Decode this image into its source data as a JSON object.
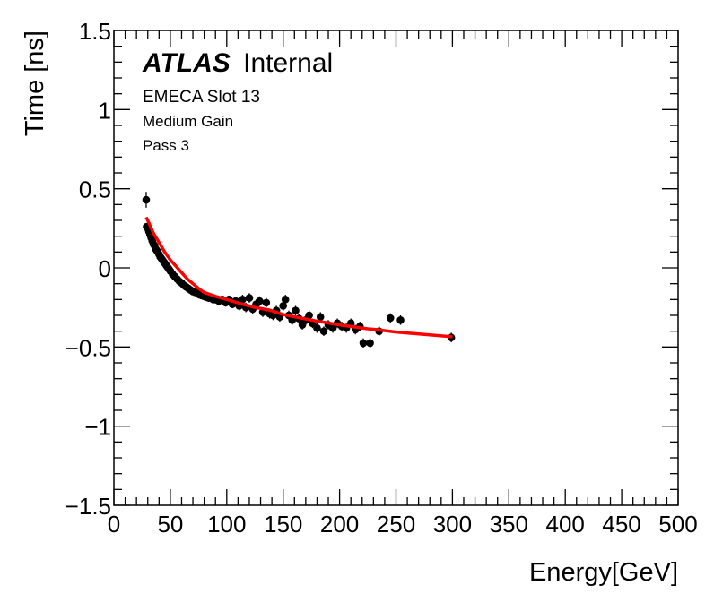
{
  "chart_data": {
    "type": "scatter",
    "title": "",
    "xlabel": "Energy[GeV]",
    "ylabel": "Time [ns]",
    "xlim": [
      0,
      500
    ],
    "ylim": [
      -1.5,
      1.5
    ],
    "x_major_ticks": [
      0,
      50,
      100,
      150,
      200,
      250,
      300,
      350,
      400,
      450,
      500
    ],
    "x_tick_labels": [
      "0",
      "50",
      "100",
      "150",
      "200",
      "250",
      "300",
      "350",
      "400",
      "450",
      "500"
    ],
    "x_minor_step": 10,
    "y_major_ticks": [
      -1.5,
      -1,
      -0.5,
      0,
      0.5,
      1,
      1.5
    ],
    "y_tick_labels": [
      "−1.5",
      "−1",
      "−0.5",
      "0",
      "0.5",
      "1",
      "1.5"
    ],
    "y_minor_step": 0.1,
    "grid": false,
    "annotations": {
      "experiment": "ATLAS",
      "status": "Internal",
      "lines": [
        "EMECA Slot 13",
        "Medium Gain",
        "Pass 3"
      ]
    },
    "colors": {
      "data": "#000000",
      "fit": "#ff0000",
      "axis": "#000000"
    },
    "fit_curve": {
      "name": "fit",
      "x": [
        28.6,
        30,
        35,
        40,
        45,
        50,
        55,
        60,
        65,
        70,
        75,
        80,
        90,
        100,
        112,
        125,
        137.5,
        150,
        175,
        200,
        225,
        233,
        250,
        275,
        300
      ],
      "y": [
        0.32,
        0.3,
        0.22,
        0.16,
        0.1,
        0.05,
        0.01,
        -0.03,
        -0.07,
        -0.1,
        -0.13,
        -0.155,
        -0.18,
        -0.2,
        -0.225,
        -0.25,
        -0.266,
        -0.295,
        -0.33,
        -0.36,
        -0.385,
        -0.39,
        -0.405,
        -0.42,
        -0.435
      ]
    },
    "series": [
      {
        "name": "data",
        "x": [
          28.6,
          29,
          30,
          31,
          32,
          33,
          34,
          35,
          36,
          37,
          38,
          39,
          40,
          41,
          42,
          43,
          44,
          45,
          46,
          47,
          48,
          49,
          50,
          52,
          54,
          56,
          58,
          60,
          62,
          64,
          66,
          68,
          70,
          72,
          74,
          76,
          78,
          80,
          82,
          84,
          86,
          88,
          90,
          93,
          96,
          99,
          102,
          105,
          108,
          111,
          114,
          117,
          120,
          123,
          126,
          129,
          132,
          135,
          138,
          141,
          144,
          147,
          150,
          152,
          155,
          158,
          161,
          164,
          167,
          170,
          173,
          176,
          180,
          183,
          186,
          190,
          194,
          198,
          202,
          206,
          210,
          214,
          218,
          221,
          227,
          235,
          245,
          254,
          299
        ],
        "y": [
          0.43,
          0.26,
          0.25,
          0.23,
          0.21,
          0.19,
          0.17,
          0.15,
          0.14,
          0.12,
          0.11,
          0.1,
          0.085,
          0.07,
          0.06,
          0.05,
          0.04,
          0.03,
          0.02,
          0.01,
          0.0,
          -0.01,
          -0.02,
          -0.04,
          -0.055,
          -0.07,
          -0.085,
          -0.095,
          -0.11,
          -0.12,
          -0.13,
          -0.14,
          -0.15,
          -0.155,
          -0.16,
          -0.17,
          -0.175,
          -0.18,
          -0.185,
          -0.19,
          -0.19,
          -0.2,
          -0.2,
          -0.21,
          -0.2,
          -0.22,
          -0.2,
          -0.23,
          -0.21,
          -0.24,
          -0.2,
          -0.25,
          -0.19,
          -0.26,
          -0.23,
          -0.21,
          -0.28,
          -0.22,
          -0.29,
          -0.3,
          -0.27,
          -0.31,
          -0.24,
          -0.2,
          -0.3,
          -0.33,
          -0.27,
          -0.32,
          -0.36,
          -0.33,
          -0.3,
          -0.35,
          -0.38,
          -0.31,
          -0.4,
          -0.36,
          -0.38,
          -0.35,
          -0.37,
          -0.38,
          -0.35,
          -0.39,
          -0.37,
          -0.475,
          -0.475,
          -0.4,
          -0.317,
          -0.33,
          -0.44
        ],
        "yerr": [
          0.05,
          0.02,
          0.02,
          0.02,
          0.02,
          0.02,
          0.02,
          0.02,
          0.02,
          0.02,
          0.02,
          0.02,
          0.02,
          0.02,
          0.02,
          0.02,
          0.02,
          0.02,
          0.02,
          0.02,
          0.02,
          0.02,
          0.02,
          0.02,
          0.02,
          0.02,
          0.02,
          0.02,
          0.02,
          0.02,
          0.02,
          0.02,
          0.02,
          0.02,
          0.02,
          0.02,
          0.02,
          0.025,
          0.025,
          0.025,
          0.025,
          0.025,
          0.025,
          0.025,
          0.025,
          0.025,
          0.025,
          0.025,
          0.025,
          0.03,
          0.03,
          0.03,
          0.03,
          0.03,
          0.03,
          0.03,
          0.03,
          0.03,
          0.03,
          0.03,
          0.03,
          0.03,
          0.03,
          0.03,
          0.03,
          0.03,
          0.03,
          0.03,
          0.03,
          0.03,
          0.03,
          0.03,
          0.03,
          0.03,
          0.03,
          0.03,
          0.03,
          0.03,
          0.03,
          0.03,
          0.03,
          0.03,
          0.03,
          0.03,
          0.03,
          0.03,
          0.03,
          0.03,
          0.03
        ]
      }
    ]
  }
}
